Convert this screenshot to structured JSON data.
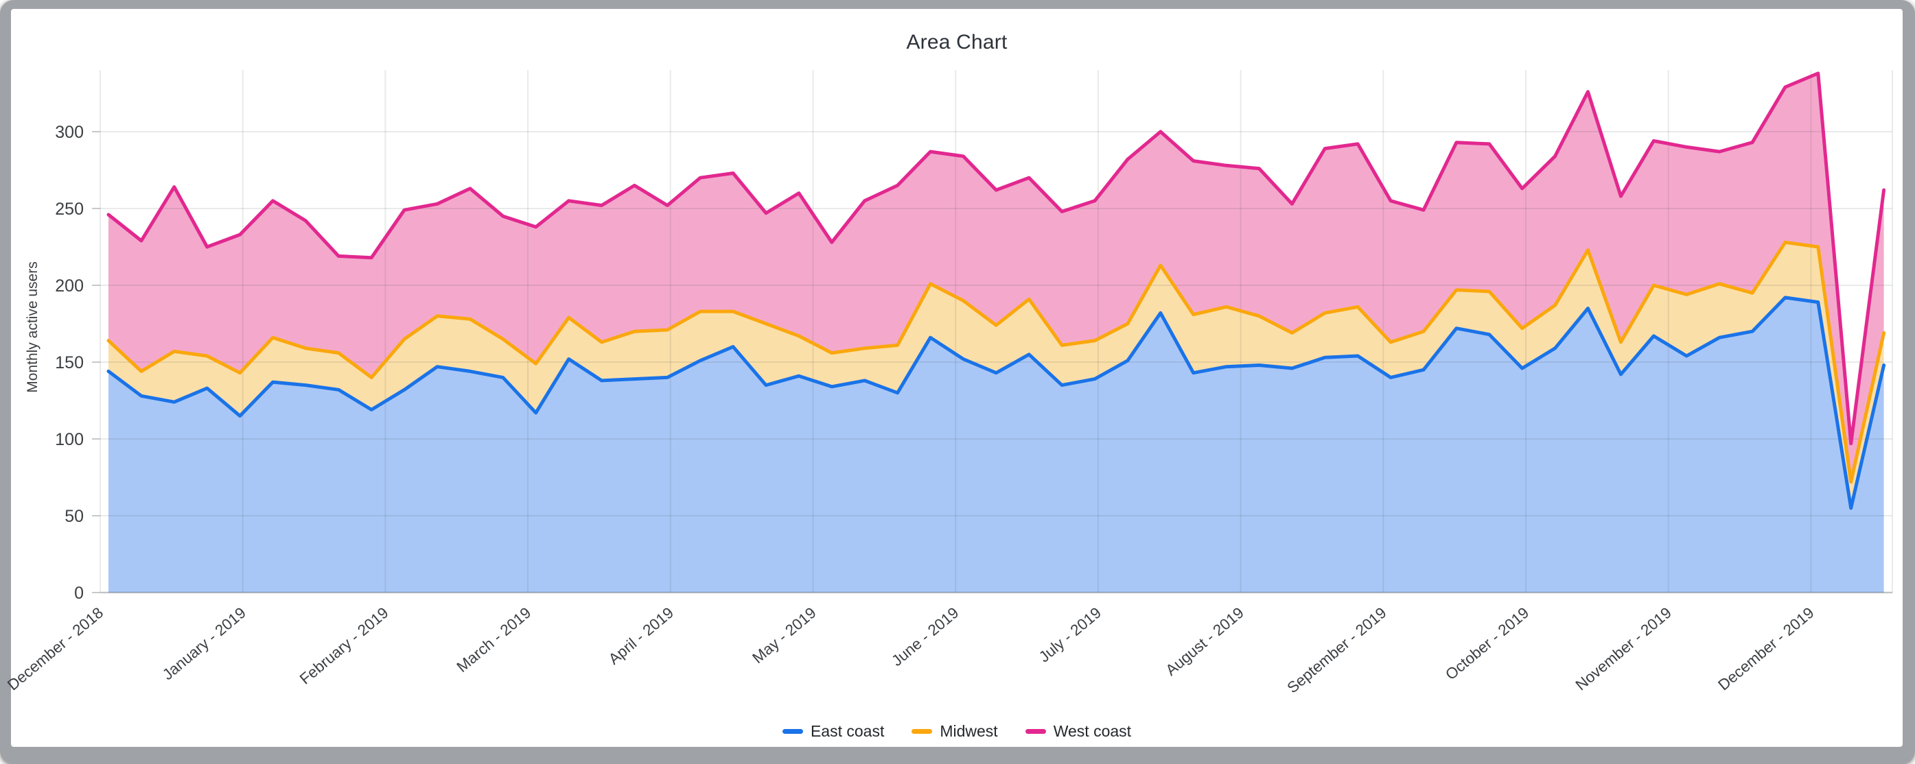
{
  "window": {
    "kind": "chart-demo-window"
  },
  "chart": {
    "title": "Area Chart",
    "y_axis_title": "Monthly active users"
  },
  "chart_data": {
    "type": "area",
    "title": "Area Chart",
    "ylabel": "Monthly active users",
    "xlabel": "",
    "ylim": [
      0,
      343
    ],
    "grid": true,
    "legend_position": "bottom-center",
    "x_interval": "weekly (55 points, Dec 2018 through late Dec 2019)",
    "x_tick_labels": [
      "December - 2018",
      "January - 2019",
      "February - 2019",
      "March - 2019",
      "April - 2019",
      "May - 2019",
      "June - 2019",
      "July - 2019",
      "August - 2019",
      "September - 2019",
      "October - 2019",
      "November - 2019",
      "December - 2019"
    ],
    "y_tick_labels": [
      "0",
      "50",
      "100",
      "150",
      "200",
      "250",
      "300"
    ],
    "y_ticks": [
      0,
      50,
      100,
      150,
      200,
      250,
      300
    ],
    "note": "Three area bands: East coast fills from 0 up to its line; Midwest band fills between East coast line and Midwest line; West coast band fills between Midwest line and West coast line. Values below are the y-axis readings of each colored line.",
    "series": [
      {
        "name": "East coast",
        "line_color": "#1A73E8",
        "fill_color": "#A9C7F6",
        "values": [
          144,
          128,
          124,
          133,
          115,
          137,
          135,
          132,
          119,
          132,
          147,
          144,
          140,
          117,
          152,
          138,
          139,
          140,
          151,
          160,
          135,
          141,
          134,
          138,
          130,
          166,
          152,
          143,
          155,
          135,
          139,
          151,
          182,
          143,
          147,
          148,
          146,
          153,
          154,
          140,
          145,
          172,
          168,
          146,
          159,
          185,
          142,
          167,
          154,
          166,
          170,
          192,
          189,
          55,
          148
        ]
      },
      {
        "name": "Midwest",
        "line_color": "#FAA70E",
        "fill_color": "#FBDFA9",
        "values": [
          164,
          144,
          157,
          154,
          143,
          166,
          159,
          156,
          140,
          165,
          180,
          178,
          165,
          149,
          179,
          163,
          170,
          171,
          183,
          183,
          175,
          167,
          156,
          159,
          161,
          201,
          190,
          174,
          191,
          161,
          164,
          175,
          213,
          181,
          186,
          180,
          169,
          182,
          186,
          163,
          170,
          197,
          196,
          172,
          187,
          223,
          163,
          200,
          194,
          201,
          195,
          228,
          225,
          72,
          169
        ]
      },
      {
        "name": "West coast",
        "line_color": "#E2288F",
        "fill_color": "#F4A9CC",
        "values": [
          246,
          229,
          264,
          225,
          233,
          255,
          242,
          219,
          218,
          249,
          253,
          263,
          245,
          238,
          255,
          252,
          265,
          252,
          270,
          273,
          247,
          260,
          228,
          255,
          265,
          287,
          284,
          262,
          270,
          248,
          255,
          282,
          300,
          281,
          278,
          276,
          253,
          289,
          292,
          255,
          249,
          293,
          292,
          263,
          284,
          326,
          258,
          294,
          290,
          287,
          293,
          329,
          338,
          97,
          262
        ]
      }
    ],
    "colors": {
      "gridline": "rgba(55,61,65,0.11)",
      "tick_label": "#3C4043",
      "title": "#2D3339",
      "window_frame": "#9FA2A7",
      "background": "#FFFFFF"
    }
  },
  "legend": {
    "items": [
      {
        "label": "East coast",
        "color": "#1A73E8"
      },
      {
        "label": "Midwest",
        "color": "#FAA70E"
      },
      {
        "label": "West coast",
        "color": "#E2288F"
      }
    ]
  }
}
